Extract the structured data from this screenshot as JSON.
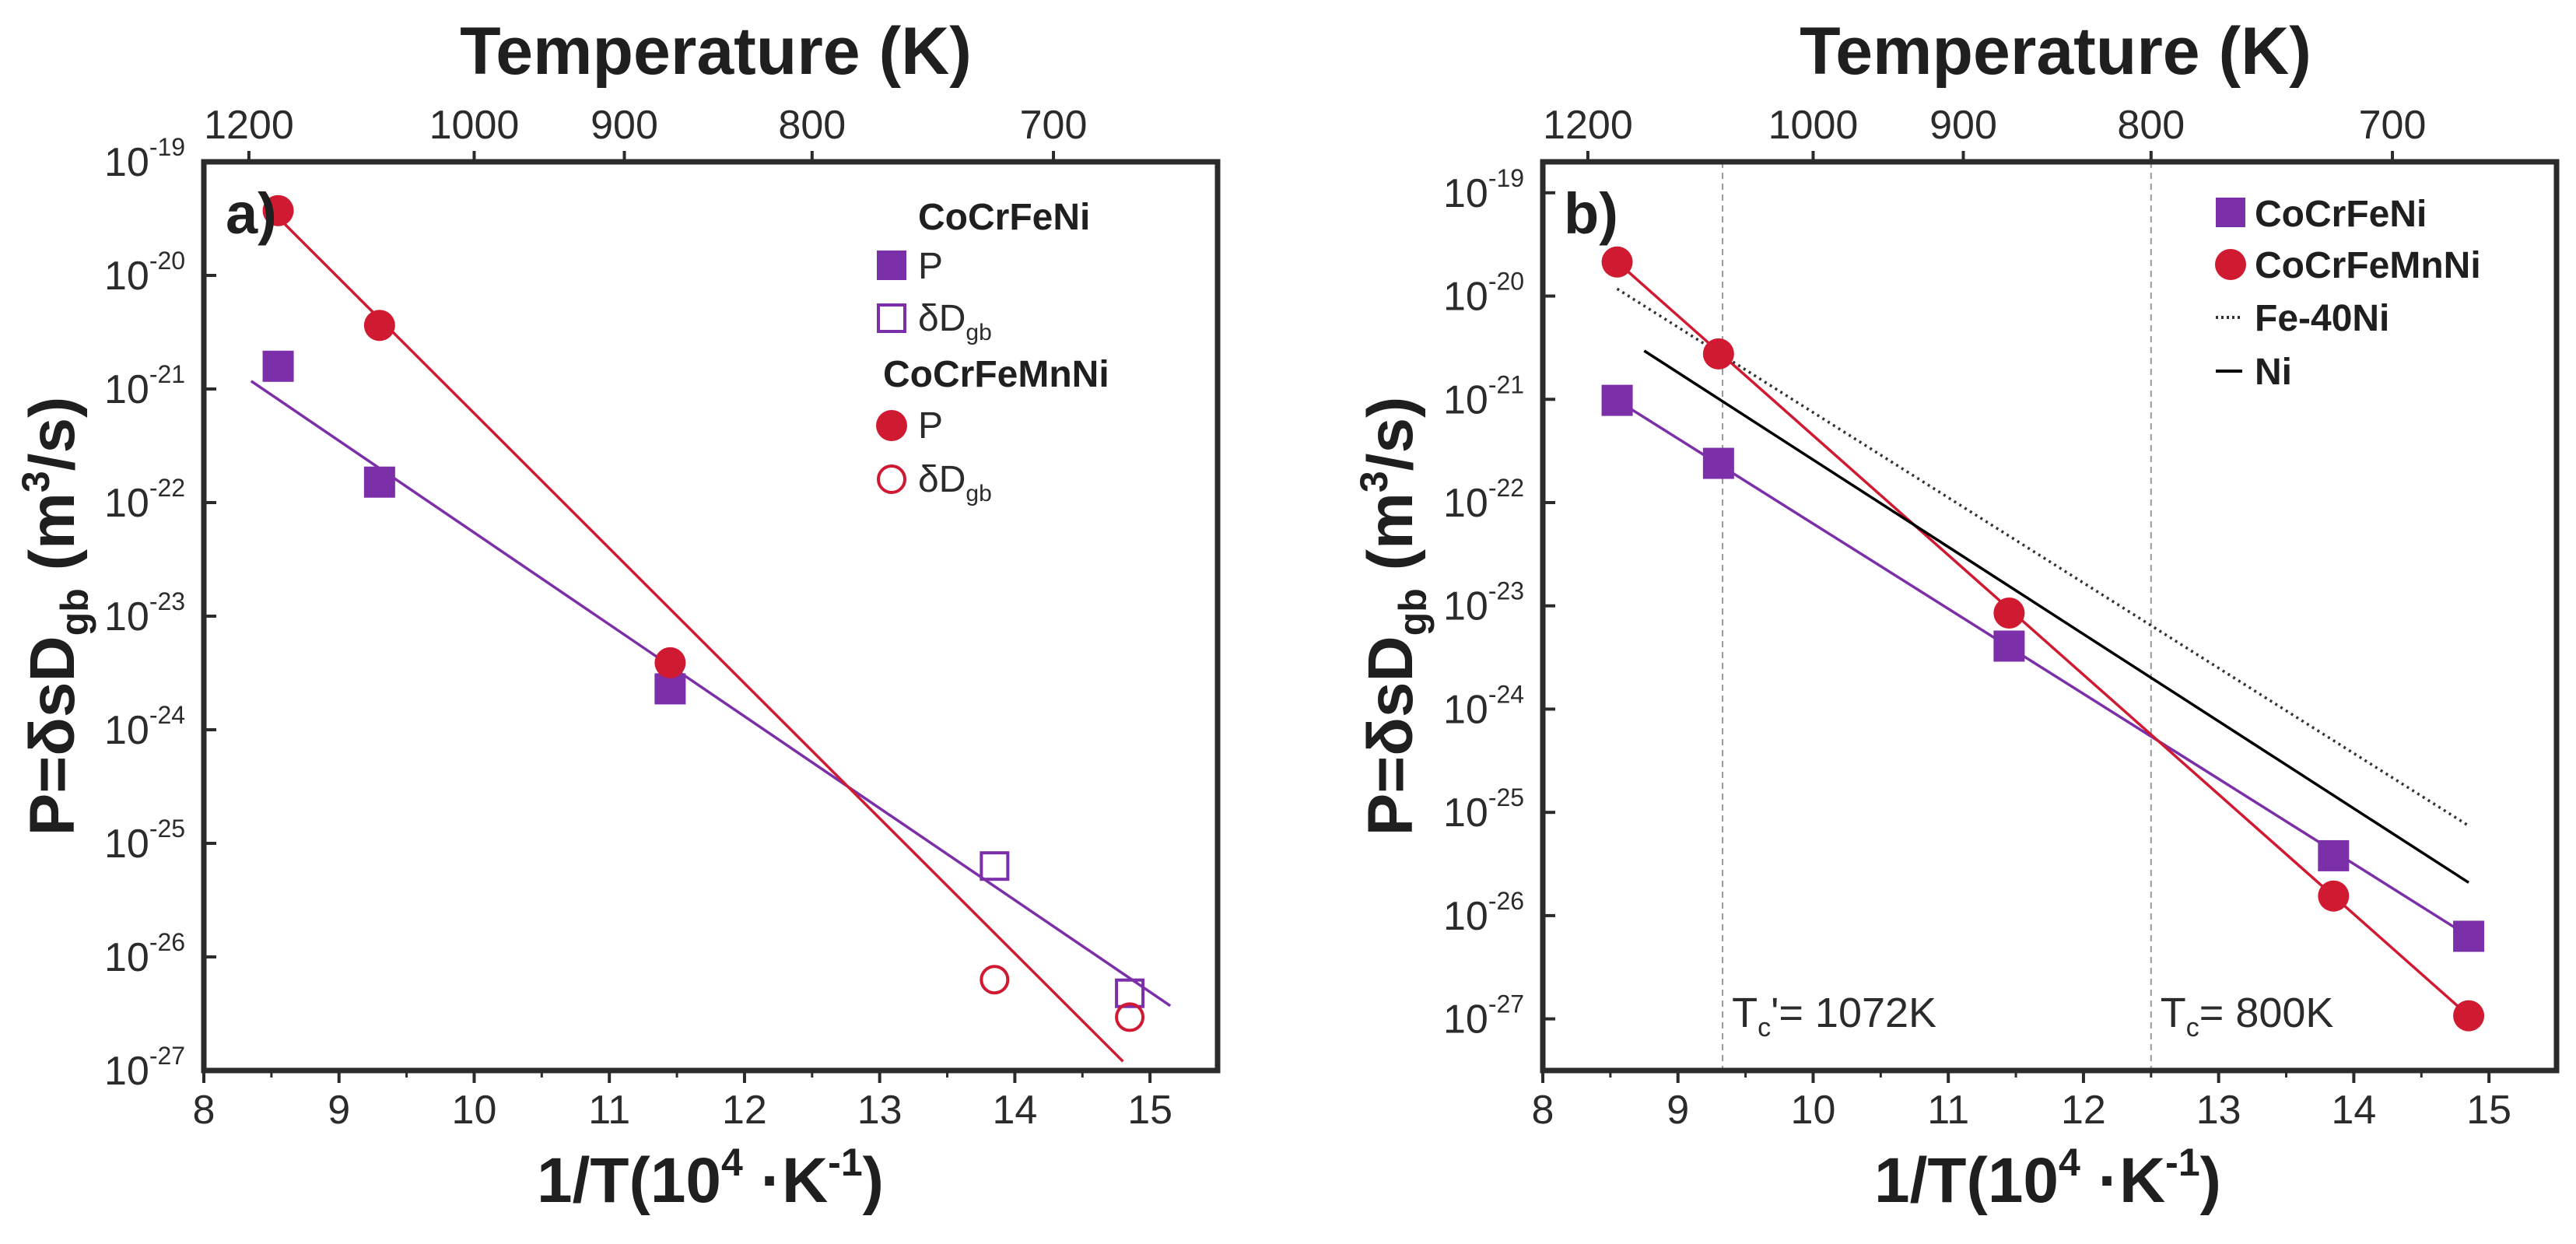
{
  "colors": {
    "cocrfeni": "#7b2fa8",
    "cocrfemnni": "#d01a32",
    "fe40ni": "#333333",
    "ni": "#000000",
    "axis": "#2b2b2b",
    "guide": "#999999"
  },
  "chart_data": [
    {
      "type": "scatter",
      "panel_label": "a)",
      "top_axis": {
        "title": "Temperature (K)",
        "tick_labels": [
          "1200",
          "1000",
          "900",
          "800",
          "700"
        ]
      },
      "xlabel": "1/T(10⁴·K⁻¹)",
      "ylabel": "P=δsD_gb (m³/s)",
      "xlim": [
        8,
        15.5
      ],
      "ylim_log10": [
        -27,
        -19
      ],
      "x_ticks": [
        "8",
        "9",
        "10",
        "11",
        "12",
        "13",
        "14",
        "15"
      ],
      "y_tick_exponents": [
        "-27",
        "-26",
        "-25",
        "-24",
        "-23",
        "-22",
        "-21",
        "-20",
        "-19"
      ],
      "legend_groups": [
        {
          "title": "CoCrFeNi",
          "entries": [
            "P",
            "δD_gb"
          ]
        },
        {
          "title": "CoCrFeMnNi",
          "entries": [
            "P",
            "δD_gb"
          ]
        }
      ],
      "series": [
        {
          "name": "CoCrFeNi P",
          "marker": "square-filled",
          "color": "#7b2fa8",
          "x": [
            8.55,
            9.3,
            11.45
          ],
          "log10_y": [
            -20.8,
            -21.82,
            -23.64
          ]
        },
        {
          "name": "CoCrFeNi δD_gb",
          "marker": "square-open",
          "color": "#7b2fa8",
          "x": [
            13.85,
            14.85
          ],
          "log10_y": [
            -25.2,
            -26.32
          ]
        },
        {
          "name": "CoCrFeMnNi P",
          "marker": "circle-filled",
          "color": "#d01a32",
          "x": [
            8.55,
            9.3,
            11.45
          ],
          "log10_y": [
            -19.43,
            -20.44,
            -23.41
          ]
        },
        {
          "name": "CoCrFeMnNi δD_gb",
          "marker": "circle-open",
          "color": "#d01a32",
          "x": [
            13.85,
            14.85
          ],
          "log10_y": [
            -26.2,
            -26.53
          ]
        }
      ],
      "fits": [
        {
          "name": "CoCrFeNi fit",
          "color": "#7b2fa8",
          "x": [
            8.35,
            15.15
          ],
          "log10_y": [
            -20.93,
            -26.43
          ]
        },
        {
          "name": "CoCrFeMnNi fit",
          "color": "#d01a32",
          "x": [
            8.6,
            14.8
          ],
          "log10_y": [
            -19.55,
            -26.92
          ]
        }
      ]
    },
    {
      "type": "scatter",
      "panel_label": "b)",
      "top_axis": {
        "title": "Temperature (K)",
        "tick_labels": [
          "1200",
          "1000",
          "900",
          "800",
          "700"
        ]
      },
      "xlabel": "1/T(10⁴·K⁻¹)",
      "ylabel": "P=δsD_gb (m³/s)",
      "xlim": [
        8,
        15.5
      ],
      "ylim_log10": [
        -27.5,
        -18.7
      ],
      "x_ticks": [
        "8",
        "9",
        "10",
        "11",
        "12",
        "13",
        "14",
        "15"
      ],
      "y_tick_exponents": [
        "-27",
        "-26",
        "-25",
        "-24",
        "-23",
        "-22",
        "-21",
        "-20",
        "-19"
      ],
      "legend": [
        "CoCrFeNi",
        "CoCrFeMnNi",
        "Fe-40Ni",
        "Ni"
      ],
      "annotations": [
        {
          "text_main": "T",
          "text_sub": "c",
          "text_rest": "'= 1072K",
          "x": 9.33
        },
        {
          "text_main": "T",
          "text_sub": "c",
          "text_rest": "= 800K",
          "x": 12.5
        }
      ],
      "series": [
        {
          "name": "CoCrFeNi",
          "marker": "square-filled",
          "color": "#7b2fa8",
          "x": [
            8.55,
            9.3,
            11.45,
            13.85,
            14.85
          ],
          "log10_y": [
            -21.01,
            -21.62,
            -23.39,
            -25.42,
            -26.2
          ]
        },
        {
          "name": "CoCrFeMnNi",
          "marker": "circle-filled",
          "color": "#d01a32",
          "x": [
            8.55,
            9.3,
            11.45,
            13.85,
            14.85
          ],
          "log10_y": [
            -19.67,
            -20.56,
            -23.07,
            -25.81,
            -26.97
          ]
        },
        {
          "name": "Fe-40Ni",
          "style": "dotted-line",
          "color": "#333333",
          "x": [
            8.55,
            14.85
          ],
          "log10_y": [
            -19.93,
            -25.13
          ]
        },
        {
          "name": "Ni",
          "style": "solid-line",
          "color": "#000000",
          "x": [
            8.75,
            14.85
          ],
          "log10_y": [
            -20.53,
            -25.68
          ]
        }
      ],
      "fits": [
        {
          "name": "CoCrFeNi fit",
          "color": "#7b2fa8",
          "x": [
            8.55,
            14.85
          ],
          "log10_y": [
            -21.01,
            -26.2
          ]
        },
        {
          "name": "CoCrFeMnNi fit",
          "color": "#d01a32",
          "x": [
            8.55,
            14.85
          ],
          "log10_y": [
            -19.67,
            -26.97
          ]
        }
      ]
    }
  ]
}
